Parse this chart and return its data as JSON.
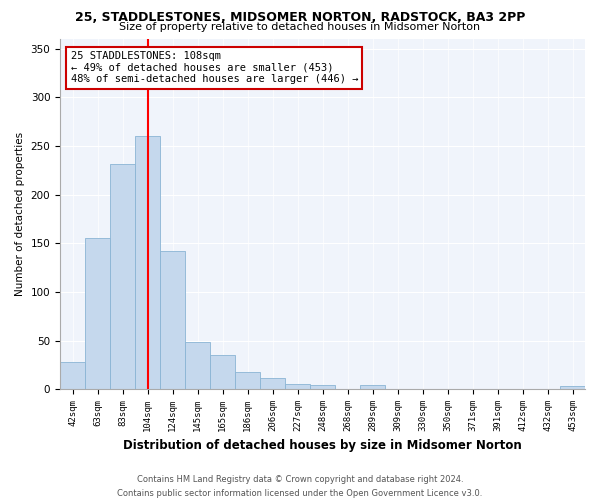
{
  "title1": "25, STADDLESTONES, MIDSOMER NORTON, RADSTOCK, BA3 2PP",
  "title2": "Size of property relative to detached houses in Midsomer Norton",
  "xlabel": "Distribution of detached houses by size in Midsomer Norton",
  "ylabel": "Number of detached properties",
  "bar_labels": [
    "42sqm",
    "63sqm",
    "83sqm",
    "104sqm",
    "124sqm",
    "145sqm",
    "165sqm",
    "186sqm",
    "206sqm",
    "227sqm",
    "248sqm",
    "268sqm",
    "289sqm",
    "309sqm",
    "330sqm",
    "350sqm",
    "371sqm",
    "391sqm",
    "412sqm",
    "432sqm",
    "453sqm"
  ],
  "bar_values": [
    28,
    155,
    231,
    260,
    142,
    49,
    35,
    18,
    11,
    5,
    4,
    0,
    4,
    0,
    0,
    0,
    0,
    0,
    0,
    0,
    3
  ],
  "bar_color": "#c5d8ed",
  "bar_edge_color": "#8ab4d4",
  "vline_x": 3,
  "vline_color": "red",
  "ylim": [
    0,
    360
  ],
  "yticks": [
    0,
    50,
    100,
    150,
    200,
    250,
    300,
    350
  ],
  "annotation_title": "25 STADDLESTONES: 108sqm",
  "annotation_line1": "← 49% of detached houses are smaller (453)",
  "annotation_line2": "48% of semi-detached houses are larger (446) →",
  "annotation_box_color": "white",
  "annotation_box_edge": "#cc0000",
  "footer1": "Contains HM Land Registry data © Crown copyright and database right 2024.",
  "footer2": "Contains public sector information licensed under the Open Government Licence v3.0.",
  "bg_color": "#ffffff",
  "plot_bg_color": "#f0f4fb"
}
